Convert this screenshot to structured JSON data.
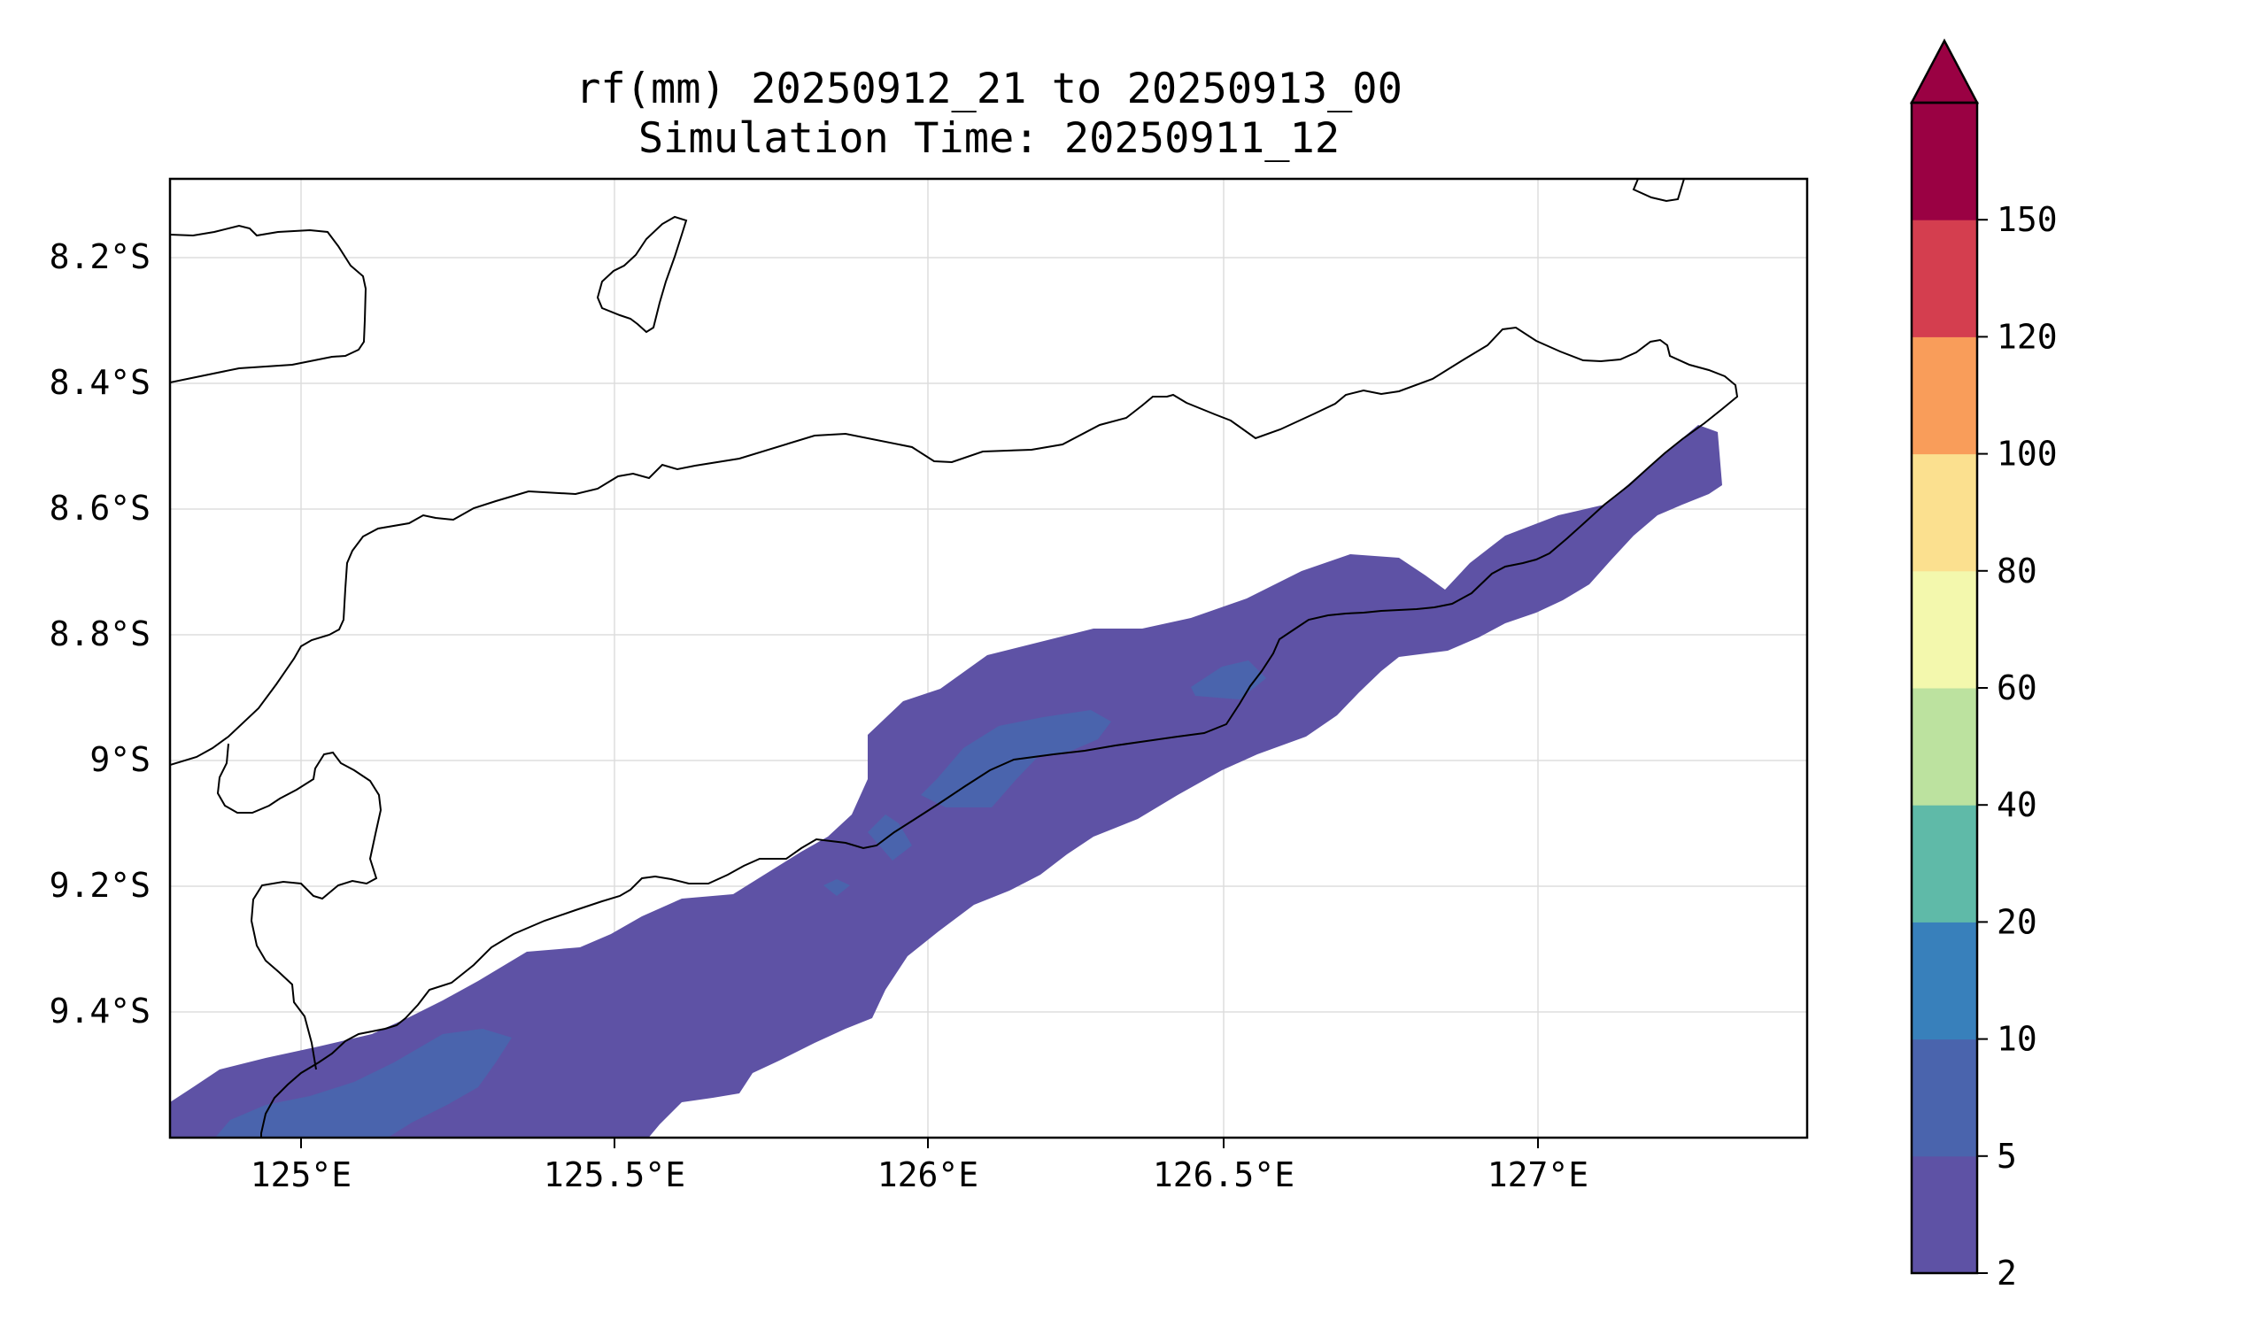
{
  "title_line1": "rf(mm) 20250912_21 to 20250913_00",
  "title_line2": "Simulation Time: 20250911_12",
  "map": {
    "x_ticks": [
      "125°E",
      "125.5°E",
      "126°E",
      "126.5°E",
      "127°E"
    ],
    "y_ticks": [
      "8.2°S",
      "8.4°S",
      "8.6°S",
      "8.8°S",
      "9°S",
      "9.2°S",
      "9.4°S"
    ],
    "grid": true,
    "lon_range": [
      124.83,
      127.42
    ],
    "lat_range": [
      -9.58,
      -8.06
    ]
  },
  "colorbar": {
    "labels": [
      "2",
      "5",
      "10",
      "20",
      "40",
      "60",
      "80",
      "100",
      "120",
      "150"
    ],
    "colors": [
      "#5e52a5",
      "#4a64ad",
      "#3880bb",
      "#5fbaa8",
      "#bce29f",
      "#f3f8ad",
      "#fbe08f",
      "#f99d5a",
      "#d43e4f",
      "#9a0143"
    ],
    "extend": "max"
  },
  "field": {
    "main_band_color": "#5e52a5",
    "inner_patch_color": "#4a64ad"
  }
}
